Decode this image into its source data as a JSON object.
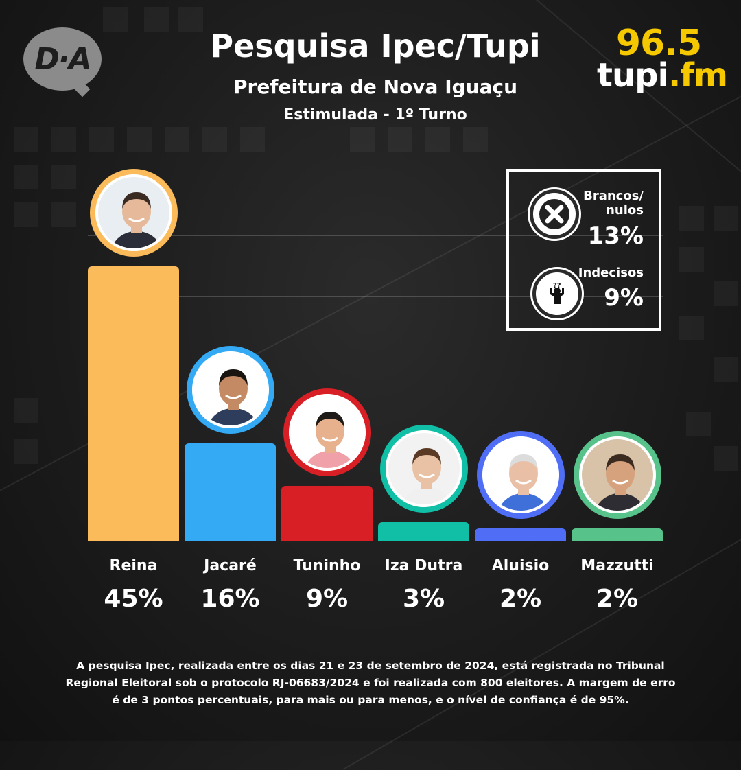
{
  "header": {
    "title": "Pesquisa Ipec/Tupi",
    "subtitle": "Prefeitura de Nova Iguaçu",
    "subtitle2": "Estimulada - 1º Turno"
  },
  "logo_left": {
    "text": "D·A",
    "icon": "da-logo"
  },
  "logo_right": {
    "number": "96.5",
    "name": "tupi",
    "suffix": ".fm",
    "accent": "#f5c800"
  },
  "chart_data": {
    "type": "bar",
    "title": "Pesquisa Ipec/Tupi",
    "subtitle": "Prefeitura de Nova Iguaçu",
    "categories": [
      "Reina",
      "Jacaré",
      "Tuninho",
      "Iza Dutra",
      "Aluisio",
      "Mazzutti"
    ],
    "values": [
      45,
      16,
      9,
      3,
      2,
      2
    ],
    "value_labels": [
      "45%",
      "16%",
      "9%",
      "3%",
      "2%",
      "2%"
    ],
    "colors": [
      "#fbbb5b",
      "#34aaf5",
      "#d81f26",
      "#10bfa5",
      "#4f6ef5",
      "#57c28a"
    ],
    "unit": "%",
    "ylim": [
      0,
      50
    ],
    "grid": true,
    "legend": "none"
  },
  "side_box": {
    "items": [
      {
        "label_line1": "Brancos/",
        "label_line2": "nulos",
        "value": "13%",
        "icon": "x-circle-icon"
      },
      {
        "label_line1": "Indecisos",
        "label_line2": "",
        "value": "9%",
        "icon": "undecided-person-icon"
      }
    ]
  },
  "footer": {
    "line1": "A pesquisa Ipec, realizada entre os dias 21 e 23 de setembro de 2024, está registrada no Tribunal",
    "line2": "Regional Eleitoral sob o protocolo RJ-06683/2024  e foi realizada com 800 eleitores. A margem de erro",
    "line3": "é de 3 pontos percentuais, para mais ou para menos, e o nível de confiança é de 95%."
  }
}
